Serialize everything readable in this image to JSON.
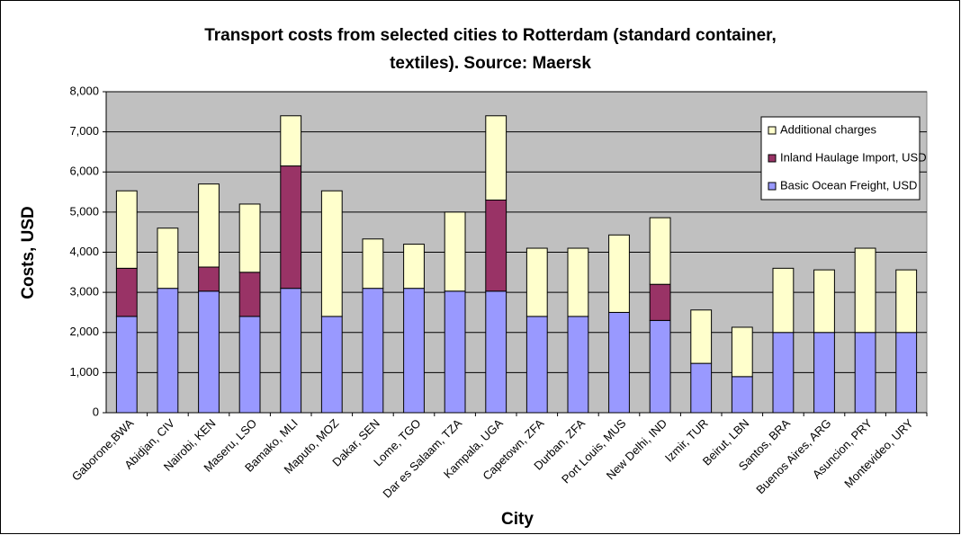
{
  "chart_data": {
    "type": "stacked-bar",
    "title": [
      "Transport costs from selected cities to Rotterdam (standard container,",
      "textiles).  Source: Maersk"
    ],
    "x_label": "City",
    "y_label": "Costs, USD",
    "categories": [
      "Gaborone,BWA",
      "Abidjan, CIV",
      "Nairobi, KEN",
      "Maseru, LSO",
      "Bamako, MLI",
      "Maputo, MOZ",
      "Dakar, SEN",
      "Lome, TGO",
      "Dar es Salaam, TZA",
      "Kampala, UGA",
      "Capetown, ZFA",
      "Durban, ZFA",
      "Port Louis, MUS",
      "New Delhi, IND",
      "Izmir, TUR",
      "Beirut, LBN",
      "Santos, BRA",
      "Buenos Aires, ARG",
      "Asuncion, PRY",
      "Montevideo, URY"
    ],
    "series": [
      {
        "name": "Basic Ocean Freight, USD",
        "color": "#9999ff",
        "values": [
          2400,
          3100,
          3030,
          2400,
          3100,
          2400,
          3100,
          3100,
          3030,
          3030,
          2400,
          2400,
          2500,
          2300,
          1230,
          900,
          2000,
          2000,
          2000,
          2000
        ]
      },
      {
        "name": "Inland Haulage Import, USD",
        "color": "#993366",
        "values": [
          1200,
          0,
          600,
          1100,
          3050,
          0,
          0,
          0,
          0,
          2270,
          0,
          0,
          0,
          900,
          0,
          0,
          0,
          0,
          0,
          0
        ]
      },
      {
        "name": "Additional charges",
        "color": "#ffffcc",
        "values": [
          1930,
          1500,
          2070,
          1700,
          1250,
          3130,
          1230,
          1100,
          1970,
          2100,
          1700,
          1700,
          1930,
          1660,
          1330,
          1230,
          1600,
          1560,
          2100,
          1560
        ]
      }
    ],
    "ylim": [
      0,
      8000
    ],
    "yticks": [
      0,
      {
        "value": 1000,
        "label": "1,000"
      },
      {
        "value": 2000,
        "label": "2,000"
      },
      {
        "value": 3000,
        "label": "3,000"
      },
      {
        "value": 4000,
        "label": "4,000"
      },
      {
        "value": 5000,
        "label": "5,000"
      },
      {
        "value": 6000,
        "label": "6,000"
      },
      {
        "value": 7000,
        "label": "7,000"
      },
      {
        "value": 8000,
        "label": "8,000"
      }
    ],
    "grid": true,
    "legend": "top-right",
    "plot_background": "#c0c0c0"
  }
}
